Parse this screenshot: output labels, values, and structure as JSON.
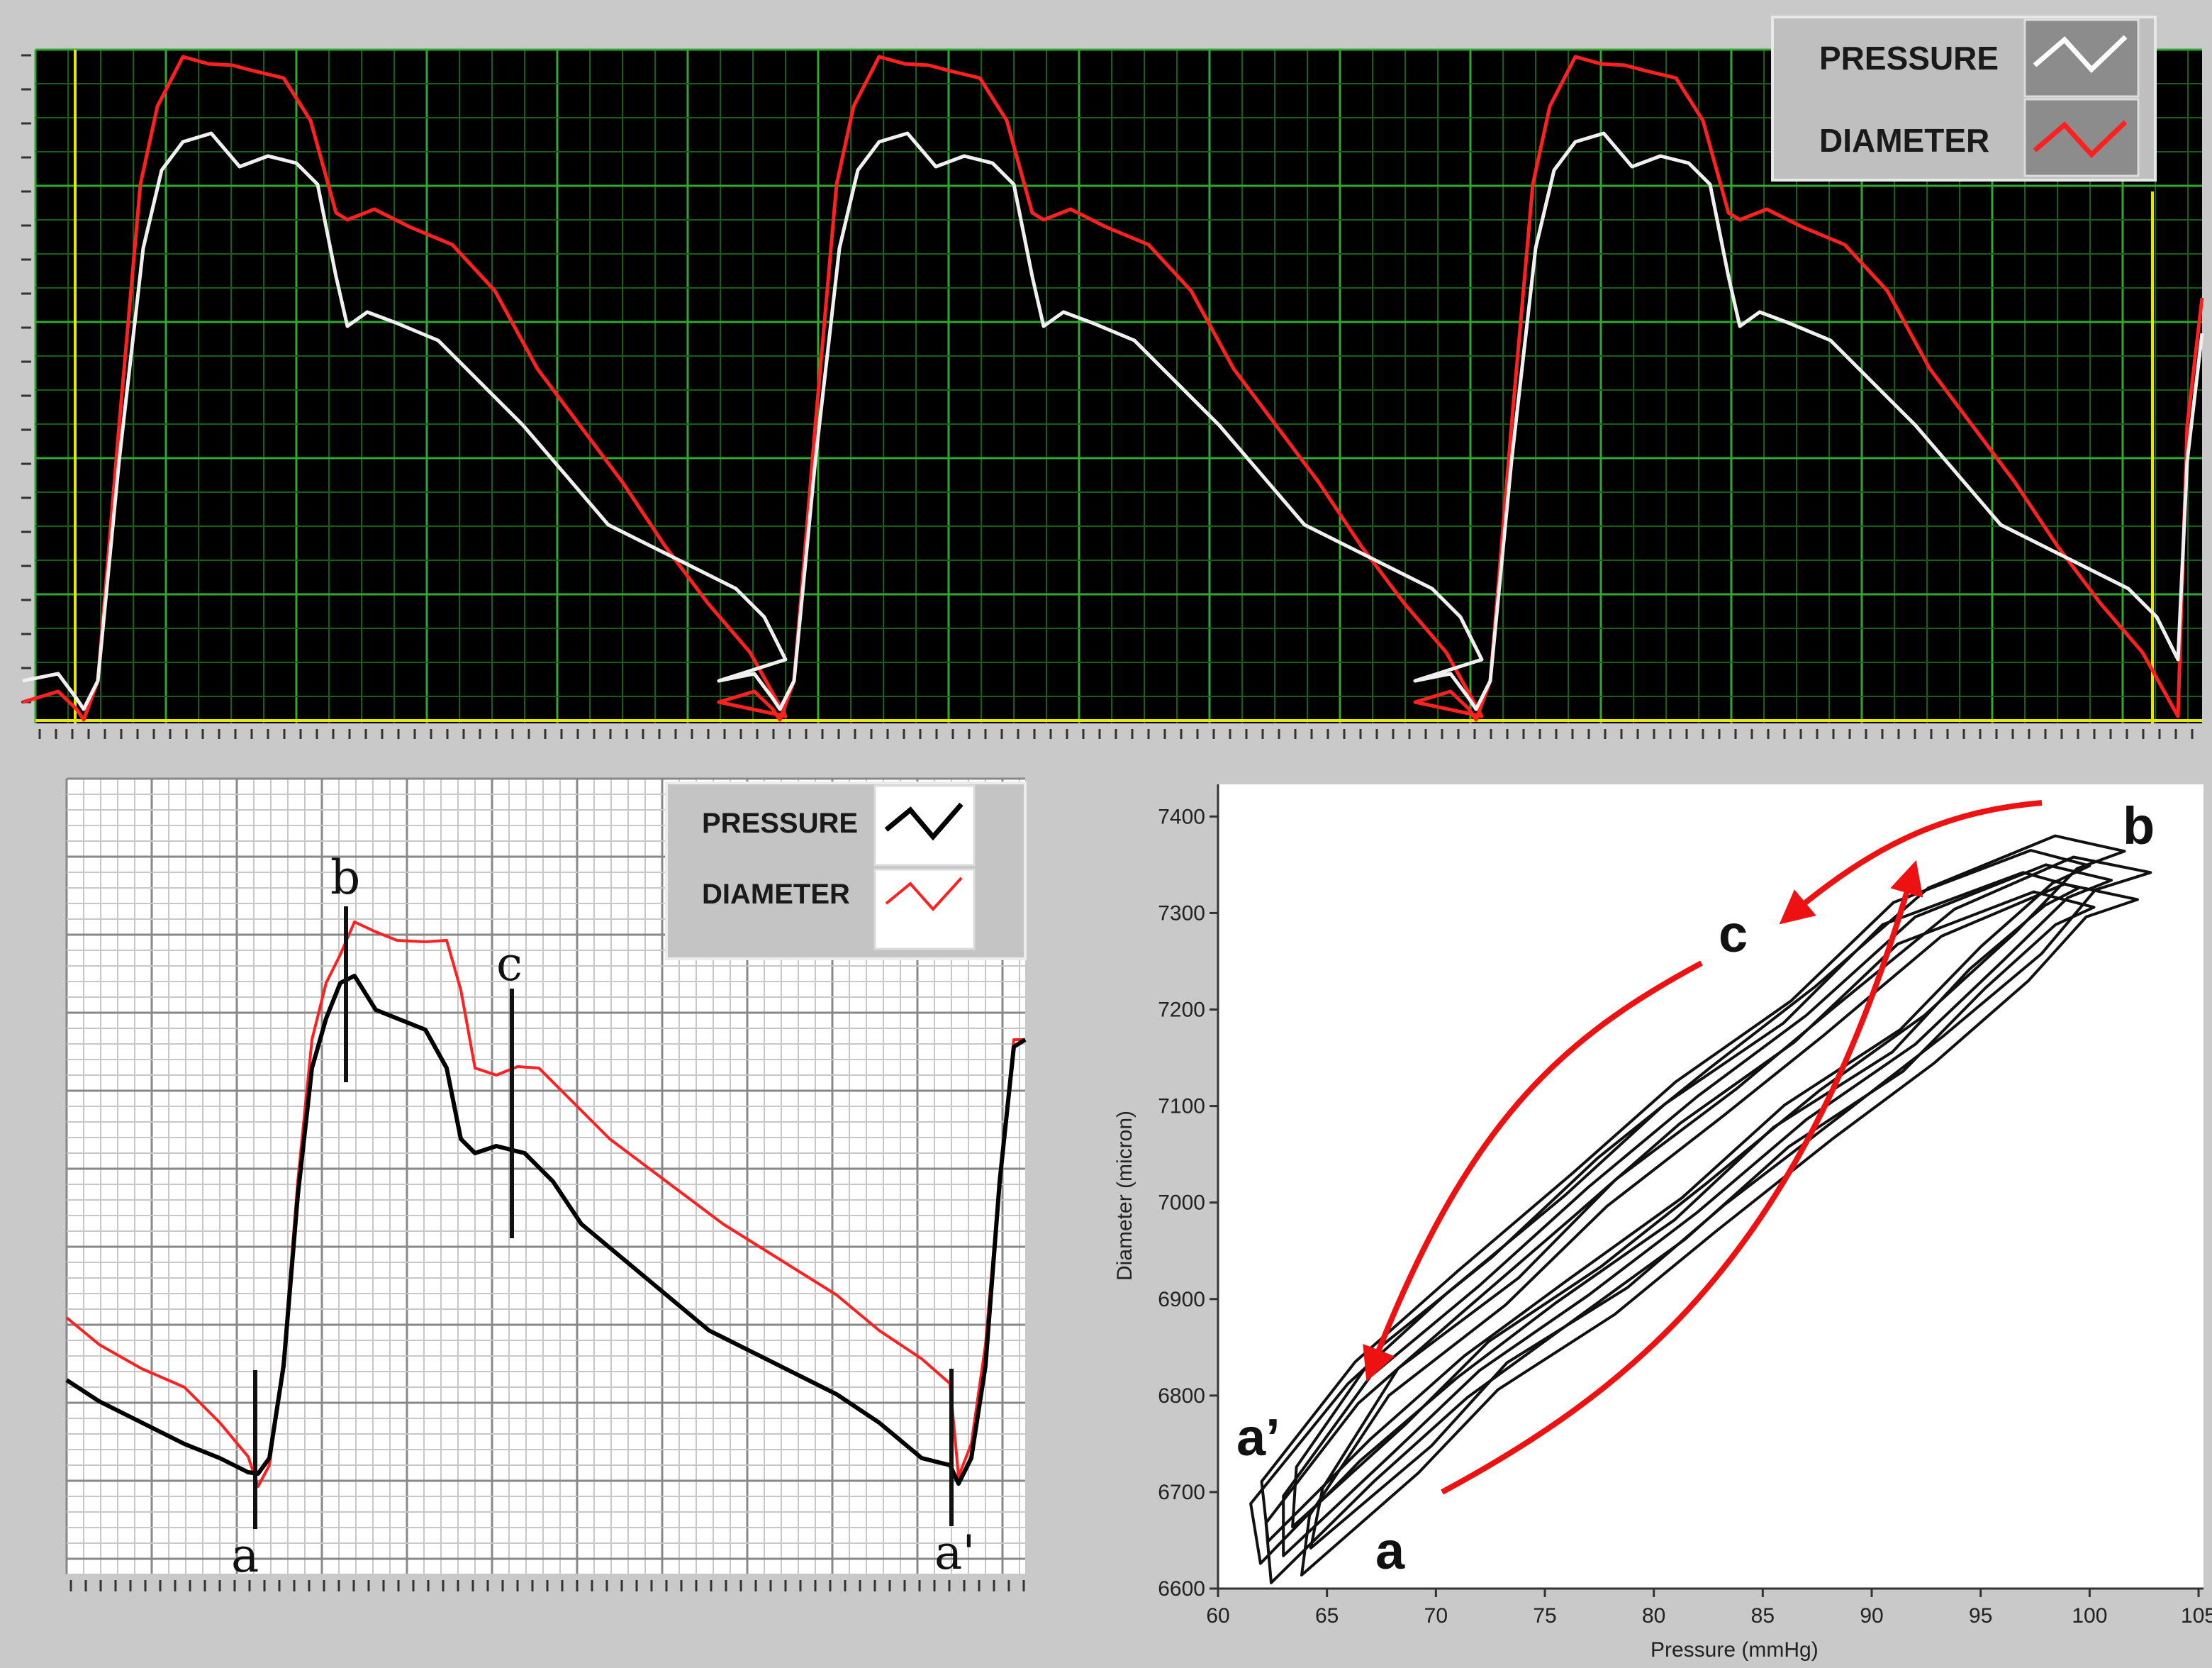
{
  "colors": {
    "panel_bg": "#c9c9c9",
    "top_plot_bg": "#000000",
    "top_grid": "#1f8a1f",
    "cursor": "#e6e600",
    "pressure_top": "#f0f0f0",
    "diameter": "#ff2020",
    "pressure_zoom": "#000000",
    "loop_arrow": "#ee1111"
  },
  "top_chart": {
    "legend": [
      {
        "label": "PRESSURE",
        "color": "#ffffff"
      },
      {
        "label": "DIAMETER",
        "color": "#ff2020"
      }
    ]
  },
  "zoom_chart": {
    "legend": [
      {
        "label": "PRESSURE",
        "color": "#000000"
      },
      {
        "label": "DIAMETER",
        "color": "#ff2020"
      }
    ],
    "markers": [
      "a",
      "b",
      "c",
      "a'"
    ]
  },
  "loop_chart": {
    "xlabel": "Pressure (mmHg)",
    "ylabel": "Diameter (micron)",
    "xticks": [
      "60",
      "65",
      "70",
      "75",
      "80",
      "85",
      "90",
      "95",
      "100",
      "105"
    ],
    "yticks": [
      "7400",
      "7300",
      "7200",
      "7100",
      "7000",
      "6900",
      "6800",
      "6700",
      "6600"
    ],
    "point_labels": [
      "a",
      "b",
      "c",
      "a’"
    ]
  },
  "chart_data": [
    {
      "type": "line",
      "grid": true,
      "legend_placement": "top-right",
      "series": [
        {
          "name": "PRESSURE",
          "color": "#ffffff",
          "shape": "three pulse waveforms"
        },
        {
          "name": "DIAMETER",
          "color": "#ff2020",
          "shape": "three pulse waveforms"
        }
      ]
    },
    {
      "type": "line",
      "grid": true,
      "legend_placement": "top-right",
      "series": [
        {
          "name": "PRESSURE",
          "color": "#000000"
        },
        {
          "name": "DIAMETER",
          "color": "#ff2020"
        }
      ],
      "markers": [
        "a",
        "b",
        "c",
        "a'"
      ]
    },
    {
      "type": "scatter",
      "xlabel": "Pressure (mmHg)",
      "ylabel": "Diameter (micron)",
      "xlim": [
        60,
        105
      ],
      "ylim": [
        6600,
        7400
      ],
      "series": [
        {
          "name": "loop",
          "x": [
            63,
            68,
            72,
            77,
            82,
            87,
            92,
            96,
            99,
            101,
            98,
            92,
            87,
            82,
            77,
            72,
            67,
            63
          ],
          "y": [
            6640,
            6740,
            6820,
            6910,
            6990,
            7080,
            7170,
            7250,
            7310,
            7340,
            7350,
            7290,
            7200,
            7110,
            7010,
            6920,
            6820,
            6690
          ]
        }
      ],
      "annotations": [
        "a",
        "b",
        "c",
        "a’"
      ]
    }
  ]
}
